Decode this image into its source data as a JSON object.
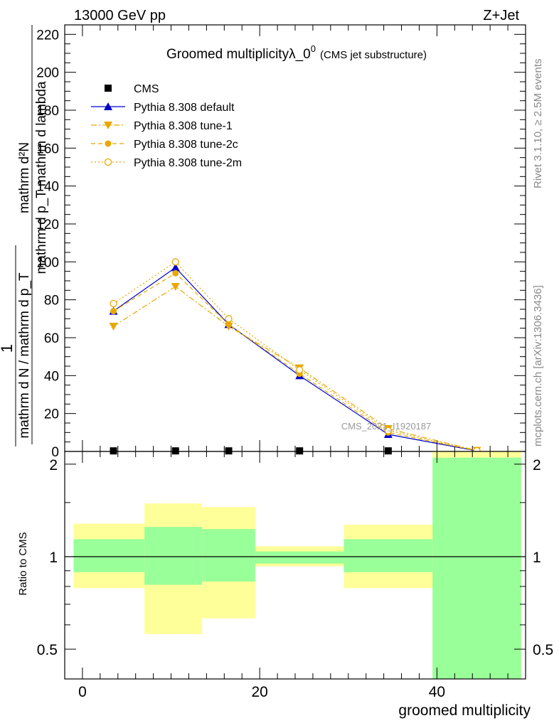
{
  "header": {
    "left": "13000 GeV pp",
    "right": "Z+Jet"
  },
  "side": {
    "rivet": "Rivet 3.1.10, ≥ 2.5M events",
    "mcplots": "mcplots.cern.ch [arXiv:1306.3436]"
  },
  "watermark": "CMS_2021_I1920187",
  "colors": {
    "default": "#0000cc",
    "tunes": "#e8a800",
    "band_inner": "#99ff99",
    "band_outer": "#ffff99"
  },
  "chart_data": [
    {
      "type": "line",
      "title_main": "Groomed multiplicityλ_0",
      "title_sup": "0",
      "title_sub": "(CMS jet substructure)",
      "ylabel_numerator": "mathrm d²N",
      "ylabel_denominator": "mathrm d p_T mathrm d lambda",
      "ylabel_prefix": "1",
      "ylabel_prefix_den": "mathrm d N / mathrm d p_T",
      "ylim": [
        0,
        225
      ],
      "yticks": [
        0,
        20,
        40,
        60,
        80,
        100,
        120,
        140,
        160,
        180,
        200,
        220
      ],
      "xlim": [
        -2,
        50
      ],
      "bins": [
        [
          -1,
          7
        ],
        [
          7,
          13.5
        ],
        [
          13.5,
          19.5
        ],
        [
          19.5,
          29.5
        ],
        [
          29.5,
          39.5
        ],
        [
          39.5,
          49.5
        ]
      ],
      "x": [
        3.5,
        10.5,
        16.5,
        24.5,
        34.5,
        44.5
      ],
      "legend_position": "top-left",
      "series": [
        {
          "name": "CMS",
          "marker": "square",
          "values": [
            0.3,
            0.3,
            0.3,
            0.3,
            0.3,
            0.0
          ]
        },
        {
          "name": "Pythia 8.308 default",
          "marker": "triangle-up",
          "values": [
            74,
            97,
            67,
            40,
            9,
            0.3
          ]
        },
        {
          "name": "Pythia 8.308 tune-1",
          "marker": "triangle-down",
          "values": [
            66,
            87,
            66,
            44,
            12,
            0.5
          ]
        },
        {
          "name": "Pythia 8.308 tune-2c",
          "marker": "circle-filled",
          "values": [
            74,
            94,
            67,
            41,
            10,
            0.4
          ]
        },
        {
          "name": "Pythia 8.308 tune-2m",
          "marker": "circle-open",
          "values": [
            78,
            100,
            70,
            43,
            11,
            0.4
          ]
        }
      ]
    },
    {
      "type": "area",
      "ylabel": "Ratio to CMS",
      "xlabel": "groomed multiplicity",
      "ylim": [
        0.4,
        2.2
      ],
      "yticks": [
        0.5,
        1,
        2
      ],
      "xticks": [
        0,
        20,
        40
      ],
      "reference": 1,
      "bands": [
        {
          "x0": -1,
          "x1": 7,
          "inner": [
            0.89,
            1.14
          ],
          "outer": [
            0.79,
            1.28
          ]
        },
        {
          "x0": 7,
          "x1": 13.5,
          "inner": [
            0.81,
            1.25
          ],
          "outer": [
            0.56,
            1.49
          ]
        },
        {
          "x0": 13.5,
          "x1": 19.5,
          "inner": [
            0.83,
            1.23
          ],
          "outer": [
            0.63,
            1.45
          ]
        },
        {
          "x0": 19.5,
          "x1": 29.5,
          "inner": [
            0.95,
            1.04
          ],
          "outer": [
            0.93,
            1.08
          ]
        },
        {
          "x0": 29.5,
          "x1": 39.5,
          "inner": [
            0.89,
            1.14
          ],
          "outer": [
            0.79,
            1.27
          ]
        },
        {
          "x0": 39.5,
          "x1": 49.5,
          "inner": [
            0.4,
            2.1
          ],
          "outer": [
            0.4,
            2.2
          ]
        }
      ]
    }
  ]
}
